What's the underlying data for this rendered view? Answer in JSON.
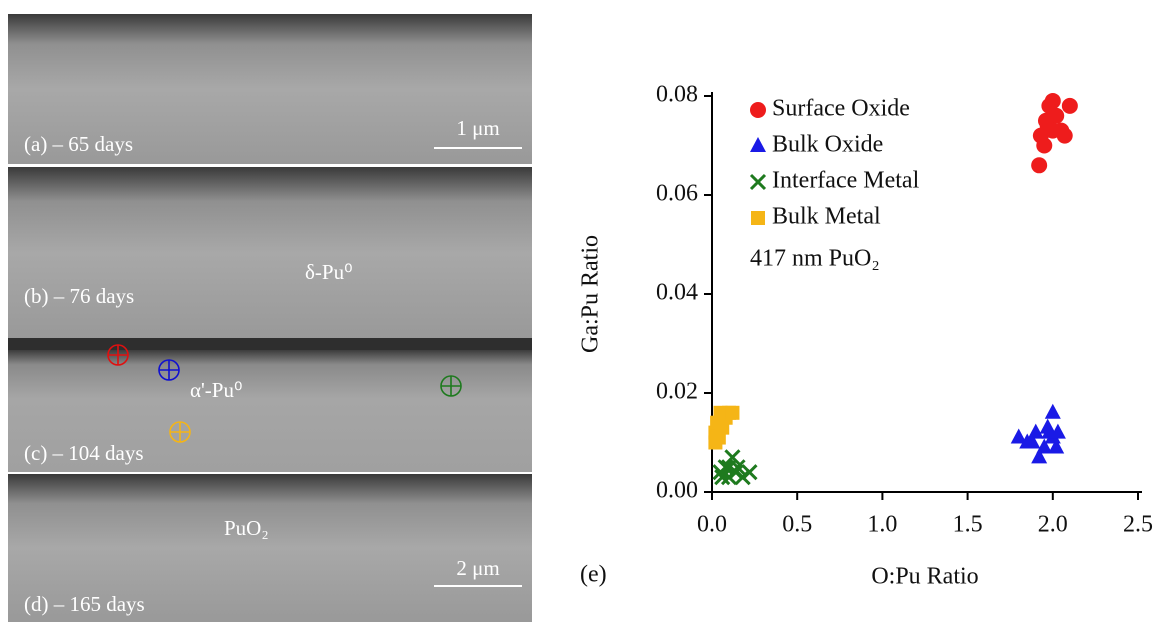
{
  "panels": [
    {
      "label": "(a) – 65 days",
      "scale_bar": "1 μm"
    },
    {
      "label": "(b) – 76 days",
      "phase": "δ-Pu⁰"
    },
    {
      "label": "(c) – 104 days",
      "phase": "α'-Pu⁰"
    },
    {
      "label": "(d) – 165 days",
      "phase": "PuO₂",
      "scale_bar": "2 μm"
    }
  ],
  "chart_data": {
    "type": "scatter",
    "panel_label": "(e)",
    "xlabel": "O:Pu Ratio",
    "ylabel": "Ga:Pu Ratio",
    "annotation": "417 nm PuO₂",
    "xlim": [
      0,
      2.5
    ],
    "ylim": [
      0,
      0.08
    ],
    "xticks": [
      {
        "value": 0,
        "label": "0.0"
      },
      {
        "value": 0.5,
        "label": "0.5"
      },
      {
        "value": 1,
        "label": "1.0"
      },
      {
        "value": 1.5,
        "label": "1.5"
      },
      {
        "value": 2,
        "label": "2.0"
      },
      {
        "value": 2.5,
        "label": "2.5"
      }
    ],
    "yticks": [
      {
        "value": 0,
        "label": "0.00"
      },
      {
        "value": 0.02,
        "label": "0.02"
      },
      {
        "value": 0.04,
        "label": "0.04"
      },
      {
        "value": 0.06,
        "label": "0.06"
      },
      {
        "value": 0.08,
        "label": "0.08"
      }
    ],
    "series": [
      {
        "name": "Surface Oxide",
        "color": "#ee1c1c",
        "marker": "circle",
        "x": [
          1.92,
          1.93,
          1.95,
          1.97,
          1.98,
          2.0,
          2.02,
          2.05,
          2.07,
          2.1,
          1.96,
          2.0
        ],
        "values": [
          0.066,
          0.072,
          0.07,
          0.074,
          0.078,
          0.079,
          0.076,
          0.073,
          0.072,
          0.078,
          0.075,
          0.073
        ]
      },
      {
        "name": "Bulk Oxide",
        "color": "#1a1ae6",
        "marker": "triangle",
        "x": [
          1.8,
          1.85,
          1.9,
          1.92,
          1.95,
          1.97,
          2.0,
          2.0,
          2.02,
          1.98,
          1.88,
          2.03
        ],
        "values": [
          0.011,
          0.01,
          0.012,
          0.007,
          0.009,
          0.013,
          0.016,
          0.011,
          0.009,
          0.012,
          0.01,
          0.012
        ]
      },
      {
        "name": "Interface Metal",
        "color": "#1e7a1e",
        "marker": "x",
        "x": [
          0.05,
          0.08,
          0.1,
          0.12,
          0.14,
          0.18,
          0.22,
          0.1,
          0.15,
          0.06
        ],
        "values": [
          0.004,
          0.005,
          0.003,
          0.007,
          0.004,
          0.003,
          0.004,
          0.005,
          0.005,
          0.003
        ]
      },
      {
        "name": "Bulk Metal",
        "color": "#f5b516",
        "marker": "square",
        "x": [
          0.02,
          0.03,
          0.05,
          0.08,
          0.1,
          0.04,
          0.06,
          0.12,
          0.02
        ],
        "values": [
          0.012,
          0.014,
          0.016,
          0.015,
          0.016,
          0.011,
          0.013,
          0.016,
          0.01
        ]
      }
    ]
  }
}
